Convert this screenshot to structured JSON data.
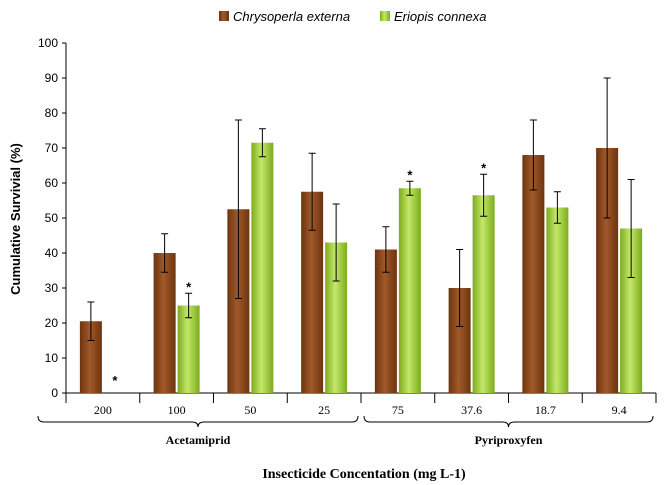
{
  "chart_data": {
    "type": "bar",
    "ylabel": "Cumulative Survivial  (%)",
    "xlabel": "Insecticide Concentation (mg L-1)",
    "ylim": [
      0,
      100
    ],
    "yticks": [
      0,
      10,
      20,
      30,
      40,
      50,
      60,
      70,
      80,
      90,
      100
    ],
    "grid": false,
    "legend_position": "top",
    "categories": [
      "200",
      "100",
      "50",
      "25",
      "75",
      "37.6",
      "18.7",
      "9.4"
    ],
    "groups": [
      {
        "label": "Acetamiprid",
        "categories": [
          "200",
          "100",
          "50",
          "25"
        ]
      },
      {
        "label": "Pyriproxyfen",
        "categories": [
          "75",
          "37.6",
          "18.7",
          "9.4"
        ]
      }
    ],
    "series": [
      {
        "name": "Chrysoperla externa",
        "color": "#8B4513",
        "values": [
          20.5,
          40,
          52.5,
          57.5,
          41,
          30,
          68,
          70
        ],
        "errors": [
          5.5,
          5.5,
          25.5,
          11,
          6.5,
          11,
          10,
          20
        ],
        "significant": [
          false,
          false,
          false,
          false,
          false,
          false,
          false,
          false
        ]
      },
      {
        "name": "Eriopis connexa",
        "color": "#9ACD32",
        "values": [
          0,
          25,
          71.5,
          43,
          58.5,
          56.5,
          53,
          47
        ],
        "errors": [
          0,
          3.5,
          4,
          11,
          2,
          6,
          4.5,
          14
        ],
        "significant": [
          true,
          true,
          false,
          false,
          true,
          true,
          false,
          false
        ]
      }
    ],
    "significance_marker": "*"
  }
}
